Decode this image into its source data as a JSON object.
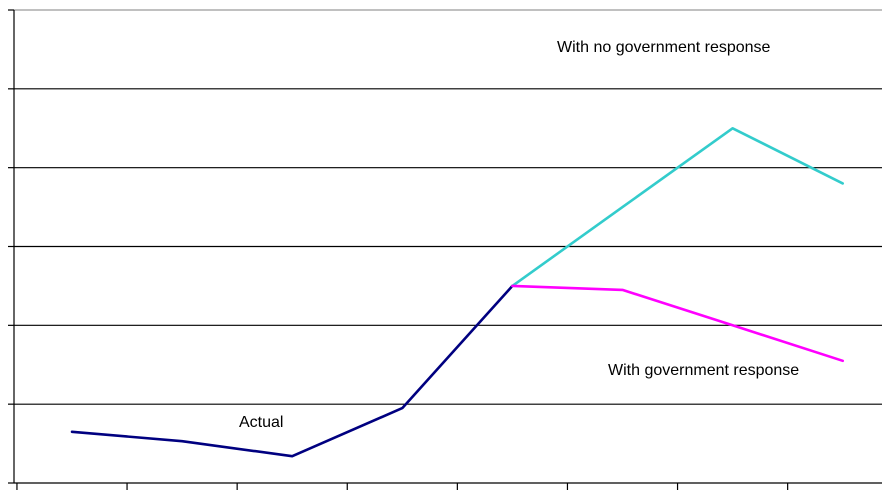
{
  "chart_data": {
    "type": "line",
    "x": [
      0,
      1,
      2,
      3,
      4,
      5,
      6,
      7
    ],
    "ylim": [
      0,
      6
    ],
    "grid": true,
    "series": [
      {
        "name": "Actual",
        "color": "#000080",
        "points": [
          [
            0,
            0.65
          ],
          [
            1,
            0.53
          ],
          [
            2,
            0.34
          ],
          [
            3,
            0.95
          ],
          [
            4,
            2.5
          ]
        ]
      },
      {
        "name": "With no government response",
        "color": "#33CCCC",
        "points": [
          [
            4,
            2.5
          ],
          [
            5,
            3.5
          ],
          [
            6,
            4.5
          ],
          [
            7,
            3.8
          ]
        ]
      },
      {
        "name": "With government response",
        "color": "#FF00FF",
        "points": [
          [
            4,
            2.5
          ],
          [
            5,
            2.45
          ],
          [
            6,
            2.0
          ],
          [
            7,
            1.55
          ]
        ]
      }
    ],
    "annotations": [
      {
        "series": "Actual",
        "text": "Actual"
      },
      {
        "series": "With no government response",
        "text": "With no government response"
      },
      {
        "series": "With government response",
        "text": "With government response"
      }
    ]
  }
}
